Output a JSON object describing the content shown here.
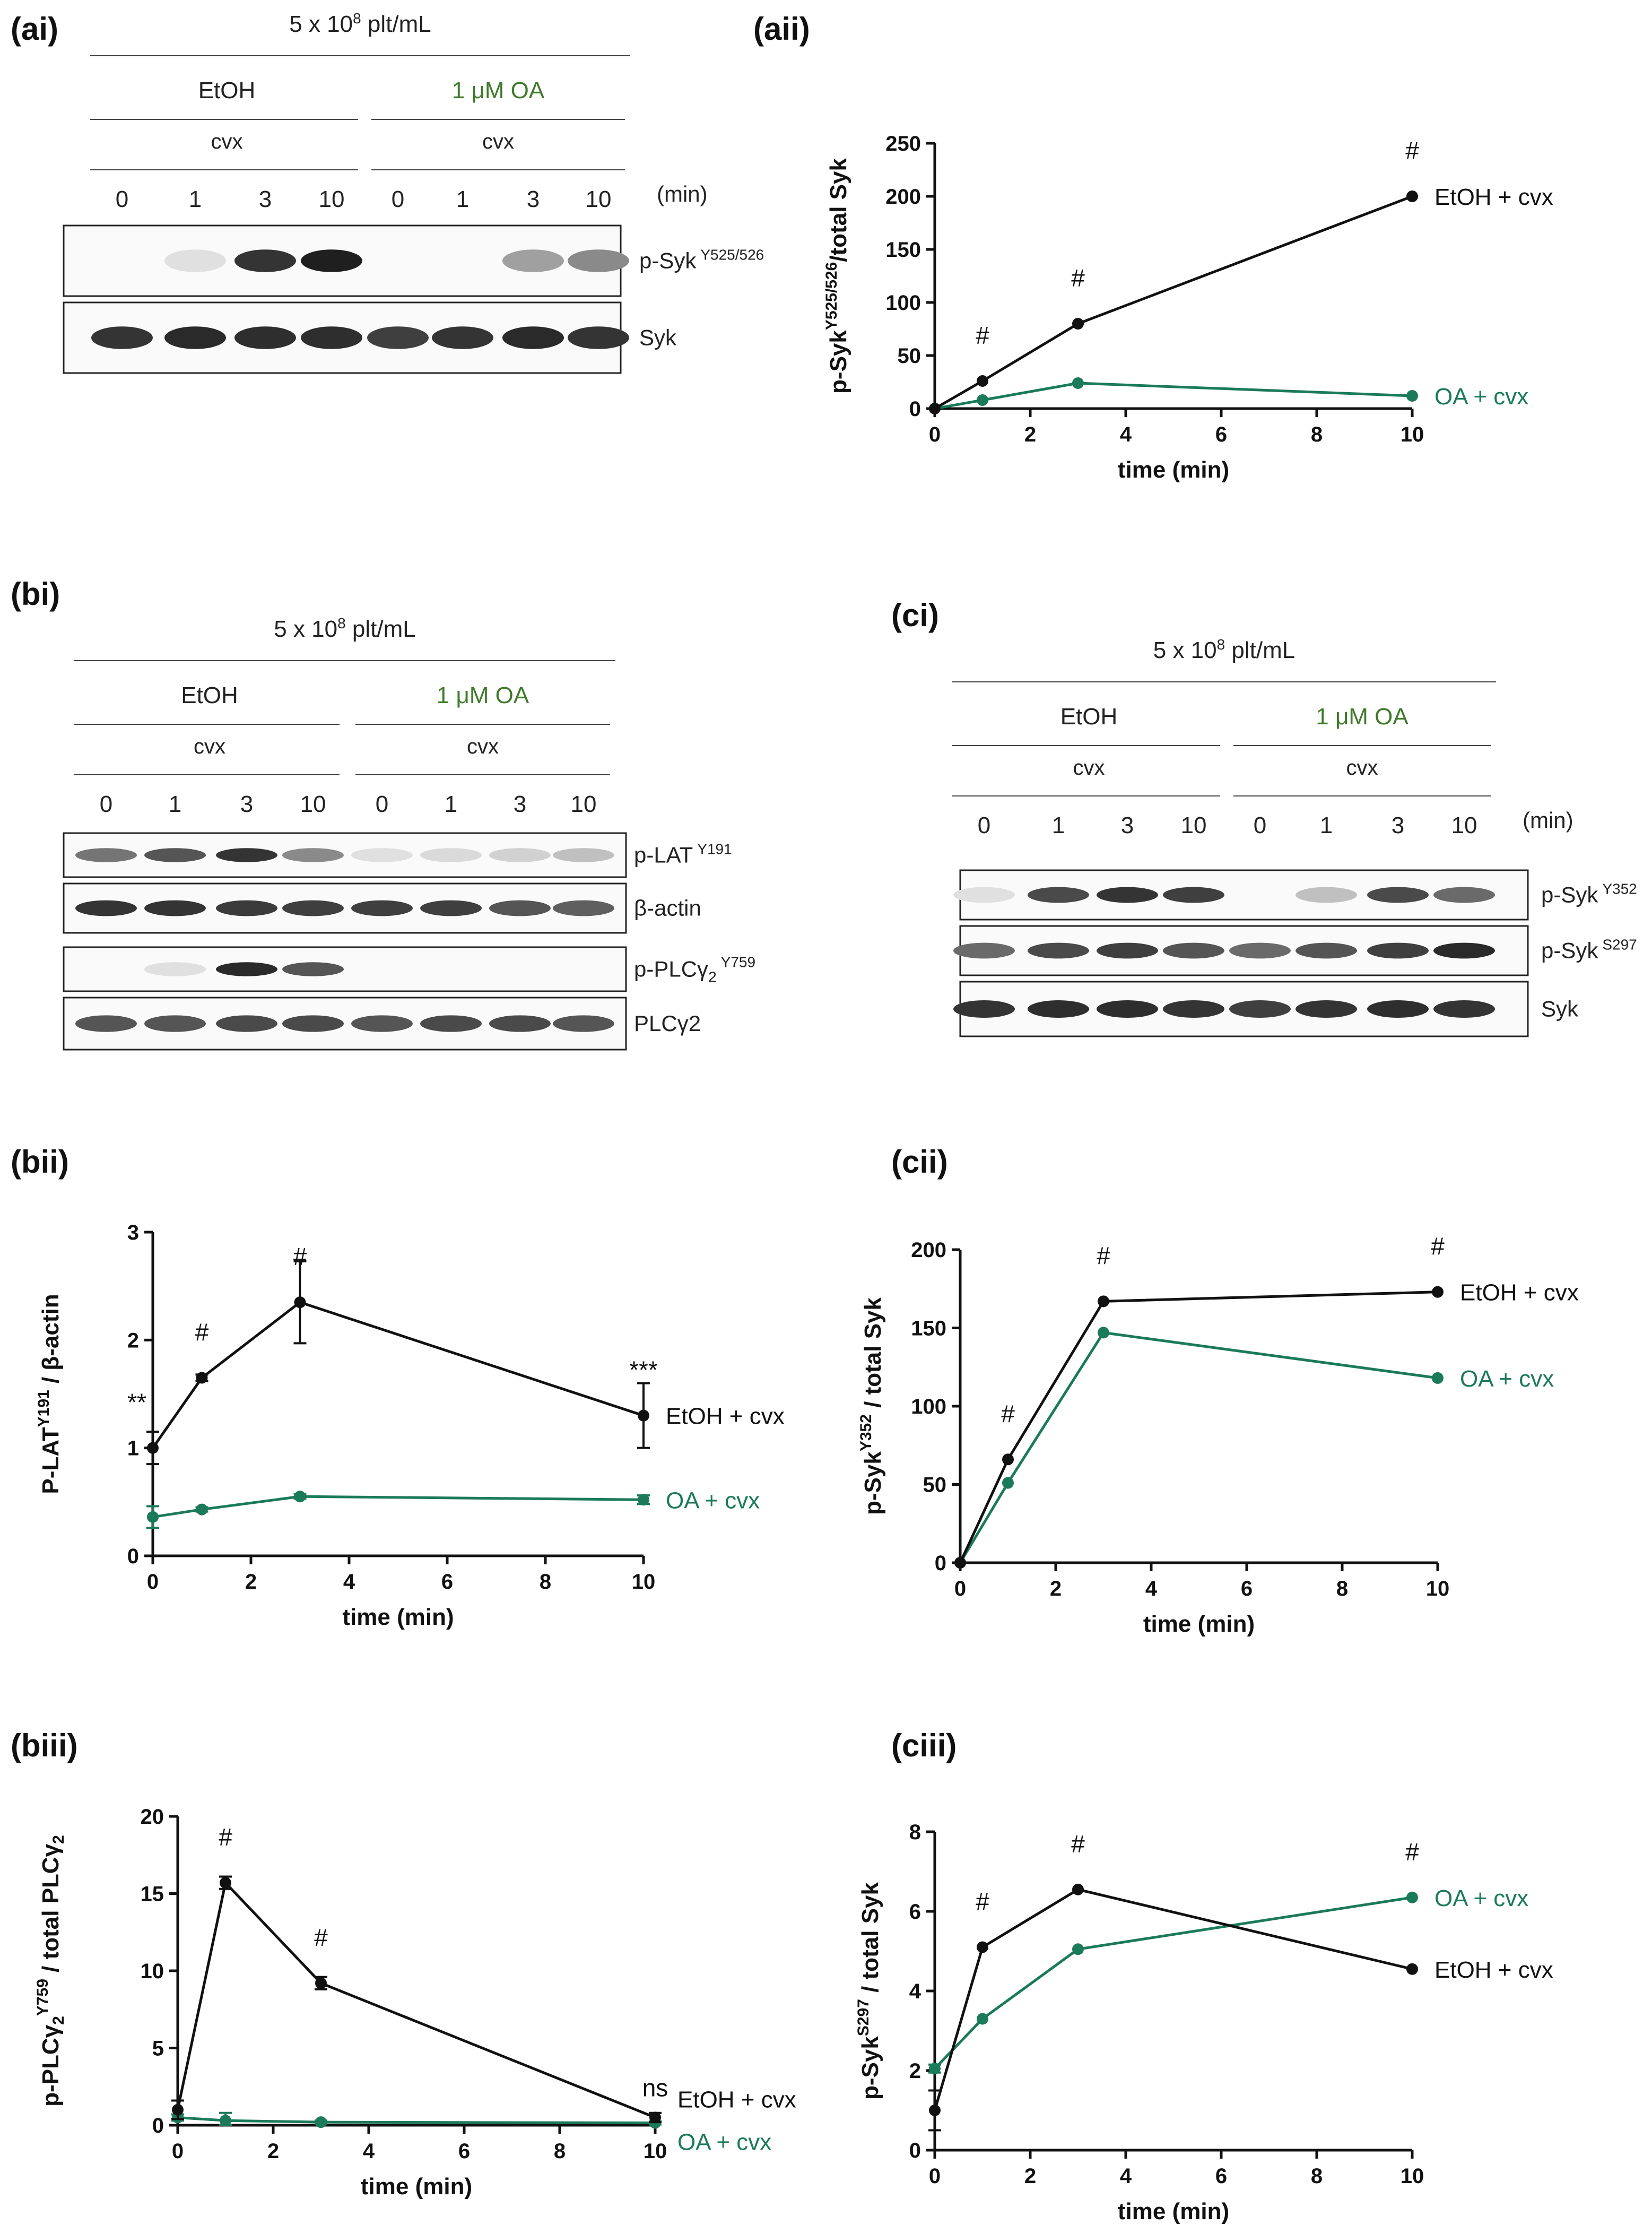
{
  "colors": {
    "control": "#111111",
    "treated": "#1b7a5a",
    "green_text": "#3f7a2a"
  },
  "panels": {
    "ai": "(ai)",
    "aii": "(aii)",
    "bi": "(bi)",
    "bii": "(bii)",
    "biii": "(biii)",
    "ci": "(ci)",
    "cii": "(cii)",
    "ciii": "(ciii)"
  },
  "blots": {
    "ai": {
      "density": "5 x 10",
      "density_exp": "8",
      "density_unit": " plt/mL",
      "left_group": "EtOH",
      "right_group": "1 μM OA",
      "agonist": "cvx",
      "min_label": "(min)",
      "times": [
        "0",
        "1",
        "3",
        "10",
        "0",
        "1",
        "3",
        "10"
      ],
      "bands": [
        {
          "name": "p-Syk",
          "sup": "Y525/526",
          "intensity": [
            0,
            0.05,
            0.85,
            0.95,
            0,
            0,
            0.35,
            0.45
          ]
        },
        {
          "name": "Syk",
          "sup": "",
          "intensity": [
            0.85,
            0.9,
            0.88,
            0.88,
            0.8,
            0.85,
            0.9,
            0.85
          ]
        }
      ]
    },
    "bi": {
      "density": "5 x 10",
      "density_exp": "8",
      "density_unit": " plt/mL",
      "left_group": "EtOH",
      "right_group": "1 μM OA",
      "agonist": "cvx",
      "times": [
        "0",
        "1",
        "3",
        "10",
        "0",
        "1",
        "3",
        "10"
      ],
      "bands": [
        {
          "name": "p-LAT",
          "sup": "Y191",
          "intensity": [
            0.55,
            0.7,
            0.85,
            0.45,
            0.05,
            0.08,
            0.12,
            0.2
          ]
        },
        {
          "name": "β-actin",
          "sup": "",
          "intensity": [
            0.85,
            0.85,
            0.82,
            0.8,
            0.8,
            0.8,
            0.7,
            0.65
          ]
        },
        {
          "name": "p-PLCγ",
          "sub": "2",
          "sup": "Y759",
          "intensity": [
            0,
            0.05,
            0.9,
            0.7,
            0,
            0,
            0,
            0
          ]
        },
        {
          "name": "PLCγ2",
          "sup": "",
          "intensity": [
            0.7,
            0.7,
            0.75,
            0.75,
            0.7,
            0.75,
            0.75,
            0.7
          ]
        }
      ]
    },
    "ci": {
      "density": "5 x 10",
      "density_exp": "8",
      "density_unit": " plt/mL",
      "left_group": "EtOH",
      "right_group": "1 μM OA",
      "agonist": "cvx",
      "min_label": "(min)",
      "times": [
        "0",
        "1",
        "3",
        "10",
        "0",
        "1",
        "3",
        "10"
      ],
      "bands": [
        {
          "name": "p-Syk",
          "sup": "Y352",
          "intensity": [
            0.05,
            0.75,
            0.85,
            0.8,
            0,
            0.2,
            0.75,
            0.6
          ]
        },
        {
          "name": "p-Syk",
          "sup": "S297",
          "intensity": [
            0.6,
            0.75,
            0.8,
            0.7,
            0.6,
            0.7,
            0.8,
            0.9
          ]
        },
        {
          "name": "Syk",
          "sup": "",
          "intensity": [
            0.85,
            0.88,
            0.88,
            0.85,
            0.8,
            0.85,
            0.88,
            0.85
          ]
        }
      ]
    }
  },
  "chart_data": [
    {
      "id": "aii",
      "type": "line",
      "xlabel": "time (min)",
      "ylabel_parts": {
        "pre": "p-Syk",
        "sup": "Y525/526",
        "post": "/total Syk"
      },
      "xlim": [
        0,
        10
      ],
      "ylim": [
        0,
        250
      ],
      "xticks": [
        0,
        2,
        4,
        6,
        8,
        10
      ],
      "yticks": [
        0,
        50,
        100,
        150,
        200,
        250
      ],
      "series": [
        {
          "name": "EtOH + cvx",
          "color": "control",
          "x": [
            0,
            1,
            3,
            10
          ],
          "y": [
            0,
            26,
            80,
            200
          ],
          "err": [
            0,
            0,
            0,
            0
          ]
        },
        {
          "name": "OA + cvx",
          "color": "treated",
          "x": [
            0,
            1,
            3,
            10
          ],
          "y": [
            0,
            8,
            24,
            12
          ],
          "err": [
            0,
            0,
            0,
            0
          ]
        }
      ],
      "annotations": [
        {
          "x": 1,
          "y": 26,
          "text": "#"
        },
        {
          "x": 3,
          "y": 80,
          "text": "#"
        },
        {
          "x": 10,
          "y": 200,
          "text": "#"
        }
      ]
    },
    {
      "id": "bii",
      "type": "line",
      "xlabel": "time (min)",
      "ylabel_parts": {
        "pre": "P-LAT",
        "sup": "Y191",
        "post": " / β-actin"
      },
      "xlim": [
        0,
        10
      ],
      "ylim": [
        0,
        3
      ],
      "xticks": [
        0,
        2,
        4,
        6,
        8,
        10
      ],
      "yticks": [
        0,
        1,
        2,
        3
      ],
      "series": [
        {
          "name": "EtOH + cvx",
          "color": "control",
          "x": [
            0,
            1,
            3,
            10
          ],
          "y": [
            1.0,
            1.65,
            2.35,
            1.3
          ],
          "err": [
            0.15,
            0.03,
            0.38,
            0.3
          ]
        },
        {
          "name": "OA + cvx",
          "color": "treated",
          "x": [
            0,
            1,
            3,
            10
          ],
          "y": [
            0.36,
            0.43,
            0.55,
            0.52
          ],
          "err": [
            0.1,
            0.02,
            0.02,
            0.04
          ]
        }
      ],
      "annotations": [
        {
          "x": 0,
          "y": 1.0,
          "text": "**"
        },
        {
          "x": 1,
          "y": 1.65,
          "text": "#"
        },
        {
          "x": 3,
          "y": 2.35,
          "text": "#"
        },
        {
          "x": 10,
          "y": 1.3,
          "text": "***"
        }
      ]
    },
    {
      "id": "biii",
      "type": "line",
      "xlabel": "time (min)",
      "ylabel_parts": {
        "pre": "p-PLCγ",
        "sub": "2",
        "sup": "Y759",
        "post": " / total PLCγ",
        "sub2": "2"
      },
      "xlim": [
        0,
        10
      ],
      "ylim": [
        0,
        20
      ],
      "xticks": [
        0,
        2,
        4,
        6,
        8,
        10
      ],
      "yticks": [
        0,
        5,
        10,
        15,
        20
      ],
      "series": [
        {
          "name": "EtOH + cvx",
          "color": "control",
          "x": [
            0,
            1,
            3,
            10
          ],
          "y": [
            1.0,
            15.7,
            9.2,
            0.5
          ],
          "err": [
            0.6,
            0.4,
            0.4,
            0.3
          ]
        },
        {
          "name": "OA + cvx",
          "color": "treated",
          "x": [
            0,
            1,
            3,
            10
          ],
          "y": [
            0.5,
            0.3,
            0.2,
            0.15
          ],
          "err": [
            0.2,
            0.5,
            0.1,
            0.1
          ]
        }
      ],
      "annotations": [
        {
          "x": 1,
          "y": 15.7,
          "text": "#"
        },
        {
          "x": 3,
          "y": 9.2,
          "text": "#"
        },
        {
          "x": 10,
          "y": 0.5,
          "text": "ns"
        }
      ]
    },
    {
      "id": "cii",
      "type": "line",
      "xlabel": "time (min)",
      "ylabel_parts": {
        "pre": "p-Syk",
        "sup": "Y352",
        "post": " / total Syk"
      },
      "xlim": [
        0,
        10
      ],
      "ylim": [
        0,
        200
      ],
      "xticks": [
        0,
        2,
        4,
        6,
        8,
        10
      ],
      "yticks": [
        0,
        50,
        100,
        150,
        200
      ],
      "series": [
        {
          "name": "EtOH + cvx",
          "color": "control",
          "x": [
            0,
            1,
            3,
            10
          ],
          "y": [
            0,
            66,
            167,
            173
          ],
          "err": [
            0,
            0,
            0,
            0
          ]
        },
        {
          "name": "OA + cvx",
          "color": "treated",
          "x": [
            0,
            1,
            3,
            10
          ],
          "y": [
            0,
            51,
            147,
            118
          ],
          "err": [
            0,
            0,
            0,
            0
          ]
        }
      ],
      "annotations": [
        {
          "x": 1,
          "y": 66,
          "text": "#"
        },
        {
          "x": 3,
          "y": 167,
          "text": "#"
        },
        {
          "x": 10,
          "y": 173,
          "text": "#"
        }
      ]
    },
    {
      "id": "ciii",
      "type": "line",
      "xlabel": "time (min)",
      "ylabel_parts": {
        "pre": "p-Syk",
        "sup": "S297",
        "post": " / total Syk"
      },
      "xlim": [
        0,
        10
      ],
      "ylim": [
        0,
        8
      ],
      "xticks": [
        0,
        2,
        4,
        6,
        8,
        10
      ],
      "yticks": [
        0,
        2,
        4,
        6,
        8
      ],
      "series": [
        {
          "name": "EtOH + cvx",
          "color": "control",
          "x": [
            0,
            1,
            3,
            10
          ],
          "y": [
            1.0,
            5.1,
            6.55,
            4.55
          ],
          "err": [
            0.5,
            0,
            0,
            0
          ]
        },
        {
          "name": "OA + cvx",
          "color": "treated",
          "x": [
            0,
            1,
            3,
            10
          ],
          "y": [
            2.05,
            3.3,
            5.05,
            6.35
          ],
          "err": [
            0.1,
            0,
            0,
            0
          ]
        }
      ],
      "annotations": [
        {
          "x": 1,
          "y": 5.1,
          "text": "#"
        },
        {
          "x": 3,
          "y": 6.55,
          "text": "#"
        },
        {
          "x": 10,
          "y": 6.35,
          "text": "#"
        }
      ]
    }
  ]
}
